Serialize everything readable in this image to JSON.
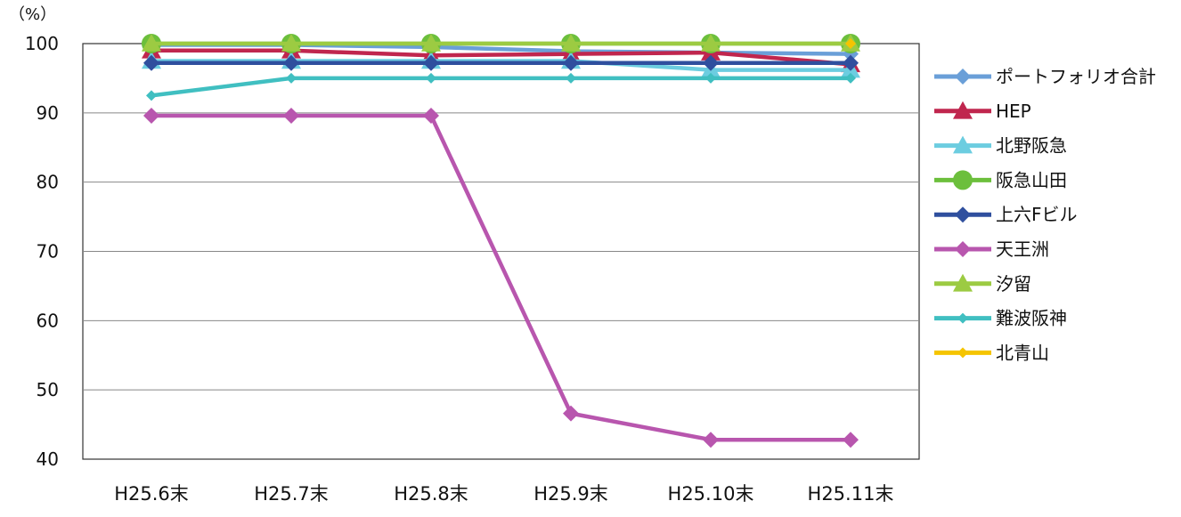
{
  "chart_data": {
    "type": "line",
    "unit_label": "（%）",
    "ylim": [
      40,
      100
    ],
    "yticks": [
      100,
      90,
      80,
      70,
      60,
      50,
      40
    ],
    "grid": true,
    "legend_position": "right",
    "categories": [
      "H25.6末",
      "H25.7末",
      "H25.8末",
      "H25.9末",
      "H25.10末",
      "H25.11末"
    ],
    "series": [
      {
        "name": "ポートフォリオ合計",
        "color": "#6a9fd8",
        "marker": "diamond",
        "values": [
          99.8,
          99.8,
          99.5,
          98.9,
          98.7,
          98.5
        ]
      },
      {
        "name": "HEP",
        "color": "#c0264e",
        "marker": "triangle",
        "values": [
          99.0,
          99.0,
          98.3,
          98.5,
          98.7,
          97.0
        ]
      },
      {
        "name": "北野阪急",
        "color": "#6ccde0",
        "marker": "triangle",
        "values": [
          97.5,
          97.5,
          97.5,
          97.5,
          96.2,
          96.2
        ]
      },
      {
        "name": "阪急山田",
        "color": "#6cbf3c",
        "marker": "circle",
        "values": [
          100,
          100,
          100,
          100,
          100,
          100
        ]
      },
      {
        "name": "上六Fビル",
        "color": "#2f4f9e",
        "marker": "diamond",
        "values": [
          97.2,
          97.2,
          97.2,
          97.2,
          97.2,
          97.2
        ]
      },
      {
        "name": "天王洲",
        "color": "#b856ae",
        "marker": "diamond",
        "values": [
          89.6,
          89.6,
          89.6,
          46.6,
          42.8,
          42.8
        ]
      },
      {
        "name": "汐留",
        "color": "#9ccb42",
        "marker": "triangle",
        "values": [
          100,
          100,
          100,
          100,
          100,
          100
        ]
      },
      {
        "name": "難波阪神",
        "color": "#40bfc1",
        "marker": "diamond-small",
        "values": [
          92.5,
          95.0,
          95.0,
          95.0,
          95.0,
          95.0
        ]
      },
      {
        "name": "北青山",
        "color": "#f5c400",
        "marker": "diamond-small",
        "values": [
          null,
          null,
          null,
          null,
          null,
          100
        ]
      }
    ]
  }
}
